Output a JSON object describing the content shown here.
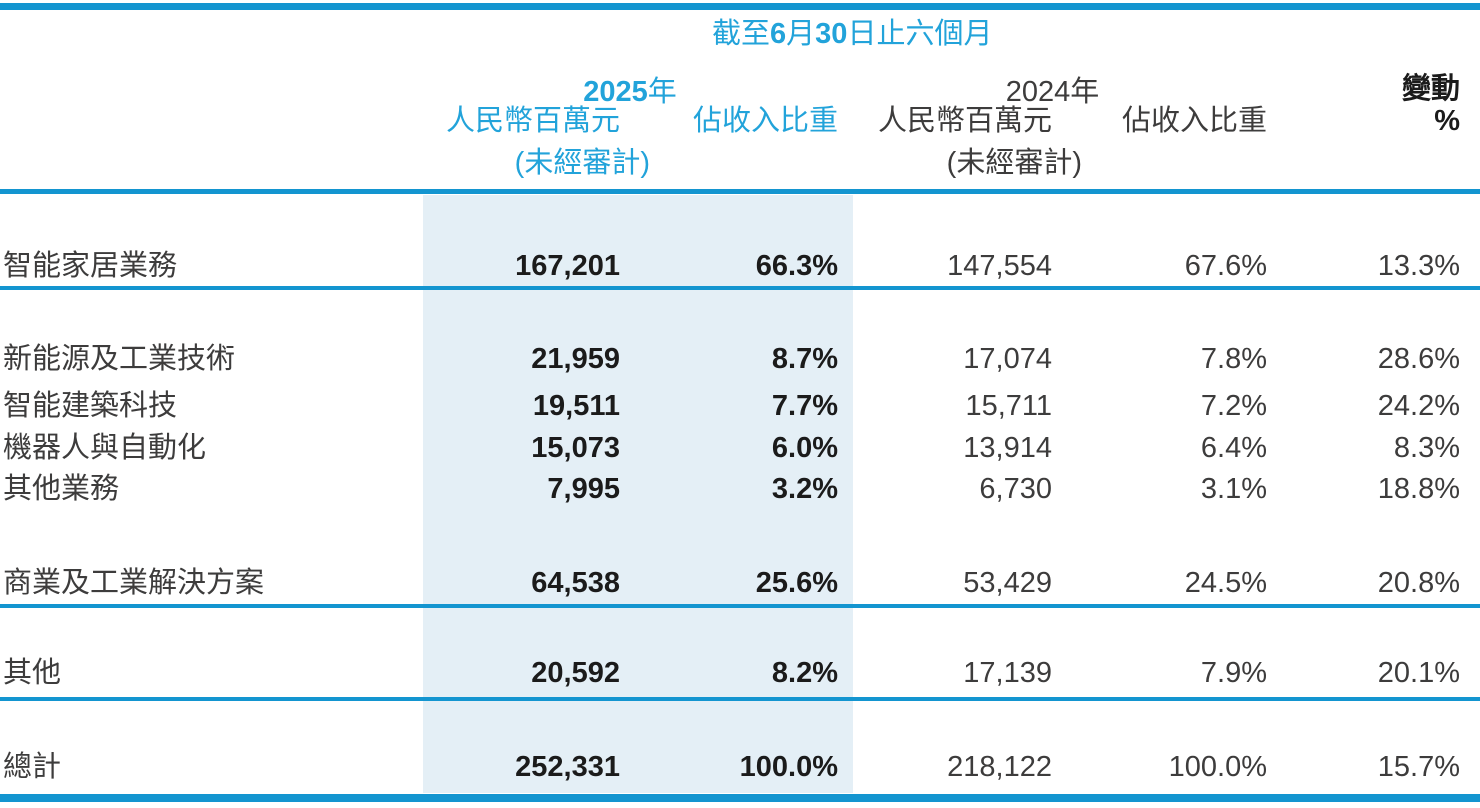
{
  "colors": {
    "accent": "#22a3da",
    "line": "#1395d0",
    "band": "#e4eff6",
    "ink": "#3d3c3c",
    "ink_strong": "#1b1b1b"
  },
  "header": {
    "period": {
      "p1": "截至",
      "n1": "6",
      "p2": "月",
      "n2": "30",
      "p3": "日止六個月"
    },
    "y2025_num": "2025",
    "y2025_suffix": "年",
    "y2024_num": "2024",
    "y2024_suffix": "年",
    "change_label": "變動",
    "change_unit": "%",
    "value_col_label": "人民幣百萬元",
    "share_col_label": "佔收入比重",
    "unaudited": "(未經審計)"
  },
  "rows": [
    {
      "label": "智能家居業務",
      "v2025": "167,201",
      "s2025": "66.3%",
      "v2024": "147,554",
      "s2024": "67.6%",
      "change": "13.3%"
    },
    {
      "label": "新能源及工業技術",
      "v2025": "21,959",
      "s2025": "8.7%",
      "v2024": "17,074",
      "s2024": "7.8%",
      "change": "28.6%"
    },
    {
      "label": "智能建築科技",
      "v2025": "19,511",
      "s2025": "7.7%",
      "v2024": "15,711",
      "s2024": "7.2%",
      "change": "24.2%"
    },
    {
      "label": "機器人與自動化",
      "v2025": "15,073",
      "s2025": "6.0%",
      "v2024": "13,914",
      "s2024": "6.4%",
      "change": "8.3%"
    },
    {
      "label": "其他業務",
      "v2025": "7,995",
      "s2025": "3.2%",
      "v2024": "6,730",
      "s2024": "3.1%",
      "change": "18.8%"
    },
    {
      "label": "商業及工業解決方案",
      "v2025": "64,538",
      "s2025": "25.6%",
      "v2024": "53,429",
      "s2024": "24.5%",
      "change": "20.8%"
    },
    {
      "label": "其他",
      "v2025": "20,592",
      "s2025": "8.2%",
      "v2024": "17,139",
      "s2024": "7.9%",
      "change": "20.1%"
    },
    {
      "label": "總計",
      "v2025": "252,331",
      "s2025": "100.0%",
      "v2024": "218,122",
      "s2024": "100.0%",
      "change": "15.7%"
    }
  ]
}
